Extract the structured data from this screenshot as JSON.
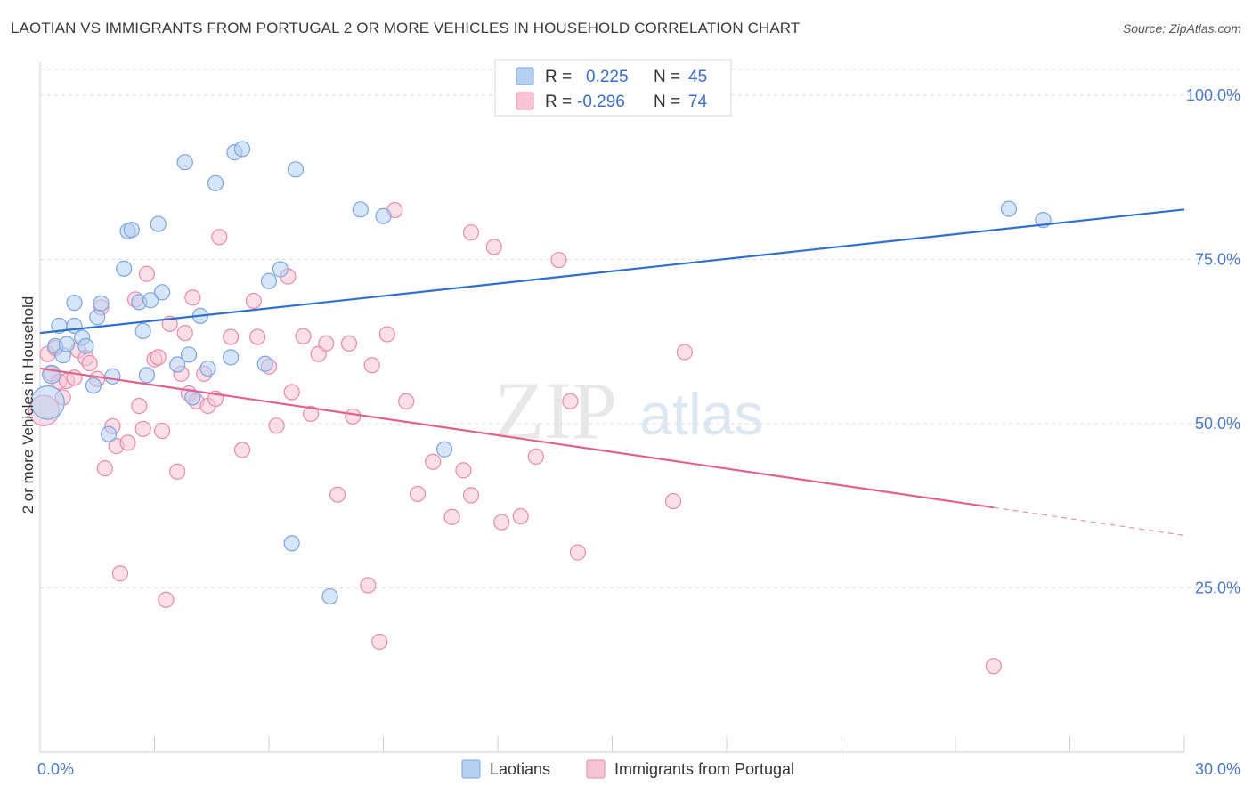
{
  "header": {
    "title": "LAOTIAN VS IMMIGRANTS FROM PORTUGAL 2 OR MORE VEHICLES IN HOUSEHOLD CORRELATION CHART",
    "source": "Source: ZipAtlas.com"
  },
  "watermark": {
    "zip": "ZIP",
    "atlas": "atlas"
  },
  "colors": {
    "blue_fill": "#b6d0f2",
    "blue_stroke": "#7aa5e0",
    "blue_line": "#2f6fcc",
    "pink_fill": "#f7c4d4",
    "pink_stroke": "#e88aaa",
    "pink_line": "#e0618e",
    "grid": "#dcdcdc",
    "tick_text": "#4a78c8"
  },
  "legend": {
    "rows": [
      {
        "r_label": "R =",
        "r_value": "0.225",
        "n_label": "N =",
        "n_value": "45"
      },
      {
        "r_label": "R =",
        "r_value": "-0.296",
        "n_label": "N =",
        "n_value": "74"
      }
    ]
  },
  "chart_data": {
    "type": "scatter",
    "title": "LAOTIAN VS IMMIGRANTS FROM PORTUGAL 2 OR MORE VEHICLES IN HOUSEHOLD CORRELATION CHART",
    "ylabel": "2 or more Vehicles in Household",
    "xlabel": "",
    "xlim": [
      0,
      30
    ],
    "ylim": [
      0,
      105
    ],
    "x_tick_labels": [
      "0.0%",
      "30.0%"
    ],
    "y_tick_values": [
      25,
      50,
      75,
      100
    ],
    "y_tick_labels": [
      "25.0%",
      "50.0%",
      "75.0%",
      "100.0%"
    ],
    "grid": true,
    "legend_placement": "top-center",
    "series": [
      {
        "name": "Laotians",
        "r": 0.225,
        "n": 45,
        "trend": {
          "x": [
            0,
            30
          ],
          "y": [
            63.8,
            82.6
          ],
          "dashed_from": null
        },
        "points": [
          [
            0.2,
            53.2,
            22
          ],
          [
            0.3,
            57.5,
            12
          ],
          [
            0.4,
            61.8,
            10
          ],
          [
            0.5,
            64.9,
            10
          ],
          [
            0.6,
            60.4,
            10
          ],
          [
            0.7,
            62.1,
            10
          ],
          [
            0.9,
            68.4,
            10
          ],
          [
            0.9,
            64.9,
            10
          ],
          [
            1.1,
            63.1,
            10
          ],
          [
            1.2,
            61.8,
            10
          ],
          [
            1.4,
            55.8,
            10
          ],
          [
            1.5,
            66.2,
            10
          ],
          [
            1.6,
            68.3,
            10
          ],
          [
            1.8,
            48.4,
            10
          ],
          [
            1.9,
            57.2,
            10
          ],
          [
            2.2,
            73.6,
            10
          ],
          [
            2.3,
            79.3,
            10
          ],
          [
            2.4,
            79.5,
            10
          ],
          [
            2.6,
            68.5,
            10
          ],
          [
            2.7,
            64.1,
            10
          ],
          [
            2.8,
            57.4,
            10
          ],
          [
            2.9,
            68.8,
            10
          ],
          [
            3.1,
            80.4,
            10
          ],
          [
            3.2,
            70.0,
            10
          ],
          [
            3.6,
            59.0,
            10
          ],
          [
            3.8,
            89.8,
            10
          ],
          [
            3.9,
            60.5,
            10
          ],
          [
            4.0,
            54.0,
            10
          ],
          [
            4.2,
            66.4,
            10
          ],
          [
            4.4,
            58.4,
            10
          ],
          [
            4.6,
            86.6,
            10
          ],
          [
            5.0,
            60.1,
            10
          ],
          [
            5.1,
            91.3,
            10
          ],
          [
            5.3,
            91.8,
            10
          ],
          [
            5.9,
            59.1,
            10
          ],
          [
            6.0,
            71.7,
            10
          ],
          [
            6.3,
            73.5,
            10
          ],
          [
            6.7,
            88.7,
            10
          ],
          [
            6.6,
            31.8,
            10
          ],
          [
            7.6,
            23.7,
            10
          ],
          [
            8.4,
            82.6,
            10
          ],
          [
            9.0,
            81.6,
            10
          ],
          [
            10.6,
            46.1,
            10
          ],
          [
            25.4,
            82.7,
            10
          ],
          [
            26.3,
            81.0,
            10
          ]
        ]
      },
      {
        "name": "Immigrants from Portugal",
        "r": -0.296,
        "n": 74,
        "trend": {
          "x": [
            0,
            30
          ],
          "y": [
            58.4,
            33.0
          ],
          "dashed_from": 25.0
        },
        "points": [
          [
            0.1,
            52.0,
            20
          ],
          [
            0.2,
            60.6,
            10
          ],
          [
            0.3,
            57.6,
            10
          ],
          [
            0.4,
            61.5,
            10
          ],
          [
            0.5,
            56.4,
            10
          ],
          [
            0.6,
            54.0,
            10
          ],
          [
            0.7,
            56.5,
            10
          ],
          [
            0.9,
            57.0,
            10
          ],
          [
            1.0,
            61.2,
            10
          ],
          [
            1.2,
            60.0,
            10
          ],
          [
            1.3,
            59.2,
            10
          ],
          [
            1.5,
            56.8,
            10
          ],
          [
            1.6,
            67.7,
            10
          ],
          [
            1.7,
            43.2,
            10
          ],
          [
            1.9,
            49.6,
            10
          ],
          [
            2.0,
            46.6,
            10
          ],
          [
            2.1,
            27.2,
            10
          ],
          [
            2.3,
            47.1,
            10
          ],
          [
            2.5,
            68.9,
            10
          ],
          [
            2.7,
            49.2,
            10
          ],
          [
            2.6,
            52.7,
            10
          ],
          [
            2.8,
            72.8,
            10
          ],
          [
            3.0,
            59.8,
            10
          ],
          [
            3.1,
            60.1,
            10
          ],
          [
            3.2,
            48.9,
            10
          ],
          [
            3.3,
            23.2,
            10
          ],
          [
            3.4,
            65.2,
            10
          ],
          [
            3.6,
            42.7,
            10
          ],
          [
            3.7,
            57.6,
            10
          ],
          [
            3.8,
            63.8,
            10
          ],
          [
            3.9,
            54.6,
            10
          ],
          [
            4.0,
            69.2,
            10
          ],
          [
            4.1,
            53.4,
            10
          ],
          [
            4.3,
            57.6,
            10
          ],
          [
            4.4,
            52.7,
            10
          ],
          [
            4.6,
            53.8,
            10
          ],
          [
            4.7,
            78.4,
            10
          ],
          [
            5.0,
            63.2,
            10
          ],
          [
            5.3,
            46.0,
            10
          ],
          [
            5.6,
            68.7,
            10
          ],
          [
            5.7,
            63.2,
            10
          ],
          [
            6.0,
            58.7,
            10
          ],
          [
            6.2,
            49.7,
            10
          ],
          [
            6.5,
            72.4,
            10
          ],
          [
            6.6,
            54.8,
            10
          ],
          [
            6.9,
            63.3,
            10
          ],
          [
            7.1,
            51.5,
            10
          ],
          [
            7.3,
            60.6,
            10
          ],
          [
            7.5,
            62.2,
            10
          ],
          [
            7.8,
            39.2,
            10
          ],
          [
            8.1,
            62.2,
            10
          ],
          [
            8.2,
            51.1,
            10
          ],
          [
            8.6,
            25.4,
            10
          ],
          [
            8.9,
            16.8,
            10
          ],
          [
            8.7,
            58.9,
            10
          ],
          [
            9.1,
            63.6,
            10
          ],
          [
            9.3,
            82.5,
            10
          ],
          [
            9.6,
            53.4,
            10
          ],
          [
            9.9,
            39.3,
            10
          ],
          [
            10.3,
            44.2,
            10
          ],
          [
            10.8,
            35.8,
            10
          ],
          [
            11.1,
            42.9,
            10
          ],
          [
            11.3,
            39.1,
            10
          ],
          [
            11.3,
            79.1,
            10
          ],
          [
            11.9,
            76.9,
            10
          ],
          [
            12.1,
            35.0,
            10
          ],
          [
            12.6,
            35.9,
            10
          ],
          [
            13.0,
            45.0,
            10
          ],
          [
            13.6,
            74.9,
            10
          ],
          [
            13.9,
            53.4,
            10
          ],
          [
            14.1,
            30.4,
            10
          ],
          [
            16.6,
            38.2,
            10
          ],
          [
            16.9,
            60.9,
            10
          ],
          [
            25.0,
            13.1,
            10
          ]
        ]
      }
    ]
  },
  "bottom_legend": {
    "items": [
      {
        "label": "Laotians"
      },
      {
        "label": "Immigrants from Portugal"
      }
    ]
  }
}
